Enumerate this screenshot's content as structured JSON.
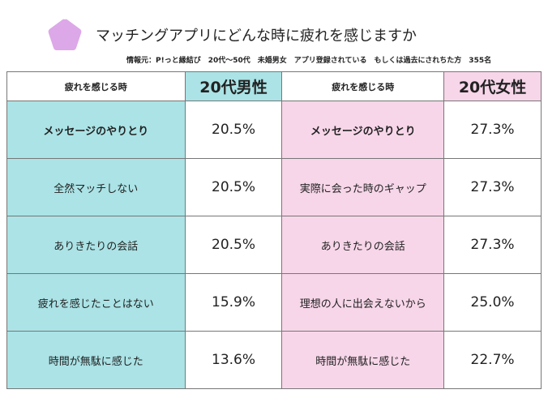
{
  "title": "マッチングアプリにどんな時に疲れを感じますか",
  "source": "情報元：P!っと縁結び　20代〜50代　未婚男女　アプリ登録されている　もしくは過去にされちた方　355名",
  "colors": {
    "male": "#abe3e6",
    "female": "#f7d6e9",
    "icon": "#dca8e8"
  },
  "icon": "pentagon-icon",
  "chart_data": {
    "type": "table",
    "columns": [
      "疲れを感じる時",
      "20代男性",
      "疲れを感じる時",
      "20代女性"
    ],
    "male": [
      {
        "item": "メッセージのやりとり",
        "value": "20.5%"
      },
      {
        "item": "全然マッチしない",
        "value": "20.5%"
      },
      {
        "item": "ありきたりの会話",
        "value": "20.5%"
      },
      {
        "item": "疲れを感じたことはない",
        "value": "15.9%"
      },
      {
        "item": "時間が無駄に感じた",
        "value": "13.6%"
      }
    ],
    "female": [
      {
        "item": "メッセージのやりとり",
        "value": "27.3%"
      },
      {
        "item": "実際に会った時のギャップ",
        "value": "27.3%"
      },
      {
        "item": "ありきたりの会話",
        "value": "27.3%"
      },
      {
        "item": "理想の人に出会えないから",
        "value": "25.0%"
      },
      {
        "item": "時間が無駄に感じた",
        "value": "22.7%"
      }
    ]
  }
}
